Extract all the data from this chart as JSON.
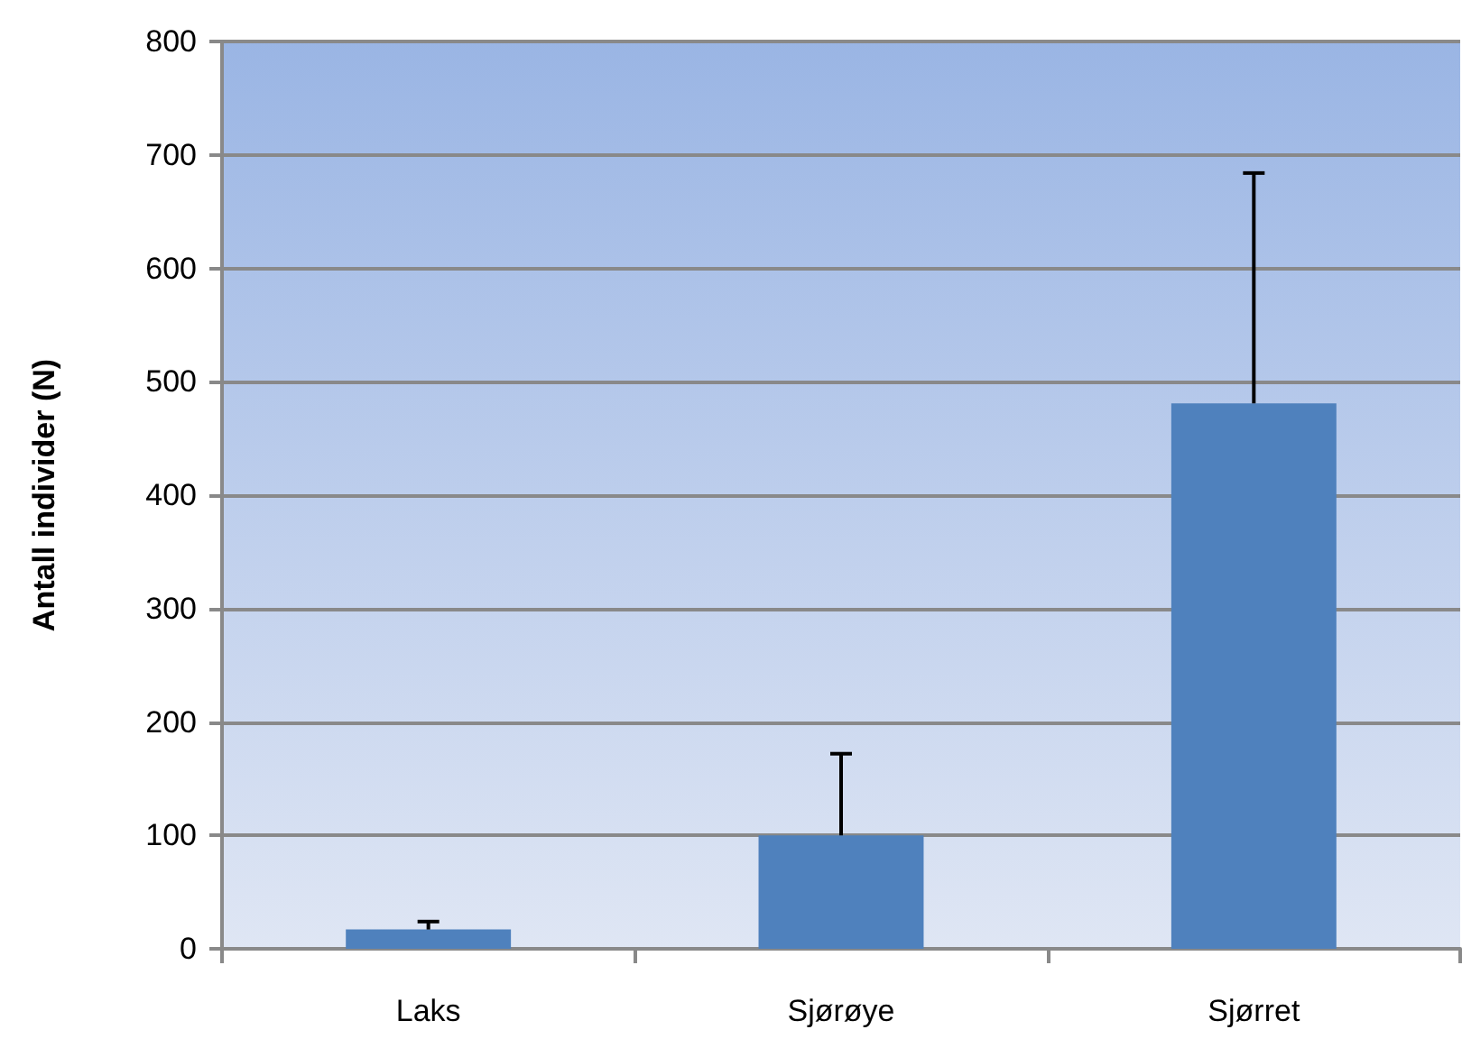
{
  "chart_data": {
    "type": "bar",
    "ylabel": "Antall individer (N)",
    "categories": [
      "Laks",
      "Sjørøye",
      "Sjørret"
    ],
    "values": [
      17,
      100,
      481
    ],
    "errors": [
      [
        17,
        24
      ],
      [
        100,
        172
      ],
      [
        481,
        684
      ]
    ],
    "color": "#4f81bd",
    "ylim": [
      0,
      800
    ],
    "yticks": [
      0,
      100,
      200,
      300,
      400,
      500,
      600,
      700,
      800
    ],
    "grid": "y"
  }
}
